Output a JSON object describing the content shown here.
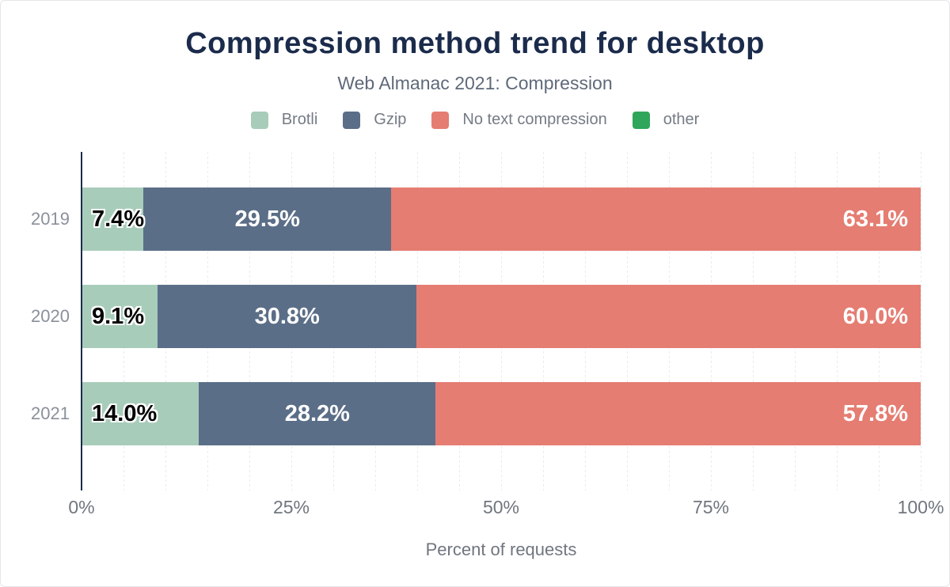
{
  "colors": {
    "title_text": "#1b2b4b",
    "subtitle_text": "#5f6979",
    "legend_text": "#757b85",
    "tick_text": "#70767f",
    "category_text": "#8b909a",
    "gridline": "#ebebf0",
    "axis_line": "#1b2b4b",
    "bar_label_dark": "#000000",
    "bar_label_light": "#ffffff"
  },
  "chart_data": {
    "type": "bar",
    "orientation": "horizontal",
    "stacked": true,
    "title": "Compression method trend for desktop",
    "subtitle": "Web Almanac 2021: Compression",
    "categories": [
      "2019",
      "2020",
      "2021"
    ],
    "series": [
      {
        "name": "Brotli",
        "color": "#a8ccba",
        "values": [
          7.4,
          9.1,
          14.0
        ],
        "labels": [
          "7.4%",
          "9.1%",
          "14.0%"
        ],
        "label_style": "dark",
        "label_align": "start"
      },
      {
        "name": "Gzip",
        "color": "#5b6e87",
        "values": [
          29.5,
          30.8,
          28.2
        ],
        "labels": [
          "29.5%",
          "30.8%",
          "28.2%"
        ],
        "label_style": "light",
        "label_align": "center"
      },
      {
        "name": "No text compression",
        "color": "#e57d72",
        "values": [
          63.1,
          60.0,
          57.8
        ],
        "labels": [
          "63.1%",
          "60.0%",
          "57.8%"
        ],
        "label_style": "light",
        "label_align": "end"
      },
      {
        "name": "other",
        "color": "#2fa65a",
        "values": [
          0,
          0,
          0
        ],
        "labels": [
          "",
          "",
          ""
        ],
        "label_style": "light",
        "label_align": "center"
      }
    ],
    "xlabel": "Percent of requests",
    "xlim": [
      0,
      100
    ],
    "x_ticks": [
      {
        "label": "0%",
        "pos": 0
      },
      {
        "label": "25%",
        "pos": 25
      },
      {
        "label": "50%",
        "pos": 50
      },
      {
        "label": "75%",
        "pos": 75
      },
      {
        "label": "100%",
        "pos": 100
      }
    ],
    "gridline_step": 5,
    "legend_position": "top"
  }
}
